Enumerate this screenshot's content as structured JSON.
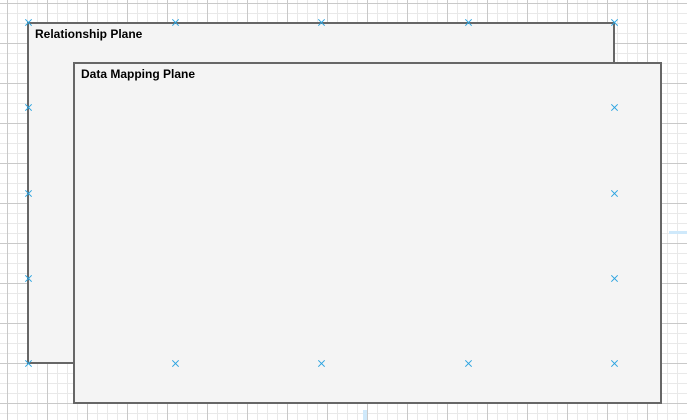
{
  "canvas": {
    "grid": "on",
    "handle_color": "#29a3e0"
  },
  "planes": [
    {
      "id": "relationship",
      "label": "Relationship Plane",
      "fill": "#f4f4f4",
      "stroke": "#666666"
    },
    {
      "id": "data-mapping",
      "label": "Data Mapping Plane",
      "fill": "#f4f4f4",
      "stroke": "#666666"
    }
  ]
}
